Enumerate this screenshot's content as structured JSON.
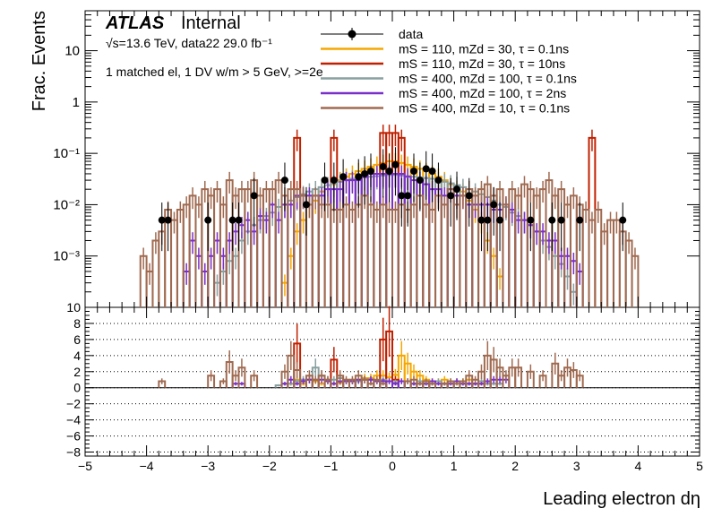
{
  "header": {
    "atlas": "ATLAS",
    "internal": "Internal",
    "energy": "√s=13.6 TeV, data22 29.0 fb⁻¹",
    "selection": "1 matched el, 1 DV w/m > 5 GeV, >=2e"
  },
  "colors": {
    "data": "#000000",
    "s110_30_01": "#f5a700",
    "s110_30_10": "#c02000",
    "s400_100_01": "#8aa0a0",
    "s400_100_2": "#7a2fc9",
    "s400_10_01": "#a06a50"
  },
  "chart_data": [
    {
      "type": "histogram",
      "panel": "main",
      "xlabel": "Leading electron dη",
      "ylabel": "Frac. Events",
      "xlim": [
        -5,
        5
      ],
      "ylim": [
        0.0001,
        60
      ],
      "yscale": "log",
      "yticks": [
        "10⁻³",
        "10⁻²",
        "10⁻¹",
        "1",
        "10"
      ],
      "ytick_values": [
        0.001,
        0.01,
        0.1,
        1,
        10
      ],
      "legend_position": "top-right",
      "series": [
        {
          "name": "data",
          "kind": "points",
          "x": [
            -3.75,
            -3.65,
            -3.0,
            -2.6,
            -2.5,
            -2.25,
            -1.75,
            -1.4,
            -1.1,
            -0.95,
            -0.8,
            -0.55,
            -0.45,
            -0.35,
            -0.15,
            -0.05,
            0.05,
            0.15,
            0.25,
            0.35,
            0.45,
            0.55,
            0.65,
            0.75,
            0.95,
            1.05,
            1.25,
            1.45,
            1.55,
            1.65,
            1.75,
            2.25,
            2.6,
            2.75,
            3.05,
            3.75
          ],
          "y": [
            0.005,
            0.005,
            0.005,
            0.005,
            0.005,
            0.015,
            0.03,
            0.01,
            0.03,
            0.03,
            0.035,
            0.035,
            0.04,
            0.045,
            0.055,
            0.045,
            0.06,
            0.015,
            0.015,
            0.045,
            0.03,
            0.05,
            0.045,
            0.03,
            0.015,
            0.02,
            0.015,
            0.005,
            0.005,
            0.01,
            0.005,
            0.005,
            0.005,
            0.005,
            0.005,
            0.005
          ]
        },
        {
          "name": "mS = 110, mZd = 30, τ = 0.1ns",
          "color_key": "s110_30_01",
          "kind": "step",
          "x": [
            -1.75,
            -1.65,
            -1.55,
            -1.45,
            -1.35,
            -1.25,
            -1.15,
            -1.05,
            -0.95,
            -0.85,
            -0.75,
            -0.65,
            -0.55,
            -0.45,
            -0.35,
            -0.25,
            -0.15,
            -0.05,
            0.05,
            0.15,
            0.25,
            0.35,
            0.45,
            0.55,
            0.65,
            0.75,
            0.85,
            0.95,
            1.05,
            1.15,
            1.25,
            1.35,
            1.45,
            1.55,
            1.65,
            1.75
          ],
          "y": [
            0.0003,
            0.001,
            0.003,
            0.005,
            0.01,
            0.012,
            0.018,
            0.02,
            0.025,
            0.03,
            0.035,
            0.04,
            0.045,
            0.05,
            0.055,
            0.06,
            0.065,
            0.07,
            0.07,
            0.065,
            0.06,
            0.055,
            0.05,
            0.045,
            0.04,
            0.035,
            0.03,
            0.025,
            0.02,
            0.018,
            0.012,
            0.008,
            0.005,
            0.002,
            0.001,
            0.0004
          ]
        },
        {
          "name": "mS = 110, mZd = 30, τ = 10ns",
          "color_key": "s110_30_10",
          "kind": "step",
          "x": [
            -1.55,
            -0.95,
            -0.15,
            -0.05,
            0.05,
            0.15,
            3.25
          ],
          "y": [
            0.2,
            0.2,
            0.25,
            0.25,
            0.25,
            0.2,
            0.2
          ]
        },
        {
          "name": "mS = 400, mZd = 100, τ = 0.1ns",
          "color_key": "s400_100_01",
          "kind": "step",
          "x": [
            -2.85,
            -2.75,
            -2.65,
            -2.55,
            -2.45,
            -2.35,
            -2.25,
            -2.15,
            -2.05,
            -1.95,
            -1.85,
            -1.75,
            -1.65,
            -1.55,
            -1.45,
            -1.35,
            -1.25,
            -1.15,
            -1.05,
            -0.95,
            -0.85,
            -0.75,
            -0.65,
            -0.55,
            -0.45,
            -0.35,
            -0.25,
            -0.15,
            -0.05,
            0.05,
            0.15,
            0.25,
            0.35,
            0.45,
            0.55,
            0.65,
            0.75,
            0.85,
            0.95,
            1.05,
            1.15,
            1.25,
            1.35,
            1.45,
            1.55,
            1.65,
            1.75,
            1.85,
            1.95,
            2.05,
            2.15,
            2.25,
            2.35,
            2.45,
            2.55,
            2.65,
            2.75,
            2.85,
            2.95
          ],
          "y": [
            0.0003,
            0.0005,
            0.0008,
            0.001,
            0.002,
            0.003,
            0.004,
            0.005,
            0.006,
            0.007,
            0.009,
            0.01,
            0.012,
            0.014,
            0.016,
            0.018,
            0.02,
            0.022,
            0.024,
            0.026,
            0.028,
            0.03,
            0.032,
            0.033,
            0.034,
            0.035,
            0.036,
            0.037,
            0.038,
            0.038,
            0.037,
            0.036,
            0.035,
            0.034,
            0.033,
            0.032,
            0.03,
            0.028,
            0.026,
            0.024,
            0.022,
            0.02,
            0.018,
            0.016,
            0.014,
            0.012,
            0.01,
            0.009,
            0.007,
            0.006,
            0.005,
            0.004,
            0.003,
            0.002,
            0.0015,
            0.001,
            0.0007,
            0.0004,
            0.0002
          ]
        },
        {
          "name": "mS = 400, mZd = 100, τ = 2ns",
          "color_key": "s400_100_2",
          "kind": "step",
          "x": [
            -3.35,
            -3.25,
            -3.15,
            -3.05,
            -2.95,
            -2.85,
            -2.75,
            -2.65,
            -2.55,
            -2.45,
            -2.35,
            -2.25,
            -2.15,
            -2.05,
            -1.95,
            -1.85,
            -1.75,
            -1.65,
            -1.55,
            -1.45,
            -1.35,
            -1.25,
            -1.15,
            -1.05,
            -0.95,
            -0.85,
            -0.75,
            -0.65,
            -0.55,
            -0.45,
            -0.35,
            -0.25,
            -0.15,
            -0.05,
            0.05,
            0.15,
            0.25,
            0.35,
            0.45,
            0.55,
            0.65,
            0.75,
            0.85,
            0.95,
            1.05,
            1.15,
            1.25,
            1.35,
            1.45,
            1.55,
            1.65,
            1.75,
            1.85,
            1.95,
            2.05,
            2.15,
            2.25,
            2.35,
            2.45,
            2.55,
            2.65,
            2.75,
            2.85,
            2.95,
            3.05
          ],
          "y": [
            0.0005,
            0.002,
            0.001,
            0.0005,
            0.001,
            0.002,
            0.001,
            0.002,
            0.003,
            0.004,
            0.005,
            0.003,
            0.006,
            0.005,
            0.01,
            0.005,
            0.01,
            0.01,
            0.015,
            0.015,
            0.015,
            0.015,
            0.015,
            0.02,
            0.02,
            0.02,
            0.03,
            0.03,
            0.03,
            0.035,
            0.04,
            0.04,
            0.04,
            0.04,
            0.04,
            0.04,
            0.035,
            0.03,
            0.03,
            0.025,
            0.02,
            0.02,
            0.015,
            0.02,
            0.015,
            0.015,
            0.01,
            0.01,
            0.01,
            0.01,
            0.008,
            0.008,
            0.01,
            0.008,
            0.005,
            0.005,
            0.004,
            0.003,
            0.003,
            0.002,
            0.002,
            0.001,
            0.001,
            0.0008,
            0.0005
          ]
        },
        {
          "name": "mS = 400, mZd = 10, τ = 0.1ns",
          "color_key": "s400_10_01",
          "kind": "step",
          "x": [
            -4.05,
            -3.95,
            -3.85,
            -3.75,
            -3.65,
            -3.55,
            -3.45,
            -3.35,
            -3.25,
            -3.15,
            -3.05,
            -2.95,
            -2.85,
            -2.75,
            -2.65,
            -2.55,
            -2.45,
            -2.35,
            -2.25,
            -2.15,
            -2.05,
            -1.95,
            -1.85,
            -1.75,
            -1.65,
            -1.55,
            -1.45,
            -1.35,
            -1.25,
            -1.15,
            -1.05,
            -0.95,
            -0.85,
            -0.75,
            -0.65,
            -0.55,
            -0.45,
            -0.35,
            -0.25,
            -0.15,
            -0.05,
            0.05,
            0.15,
            0.25,
            0.35,
            0.45,
            0.55,
            0.65,
            0.75,
            0.85,
            0.95,
            1.05,
            1.15,
            1.25,
            1.35,
            1.45,
            1.55,
            1.65,
            1.75,
            1.85,
            1.95,
            2.05,
            2.15,
            2.25,
            2.35,
            2.45,
            2.55,
            2.65,
            2.75,
            2.85,
            2.95,
            3.05,
            3.15,
            3.25,
            3.35,
            3.45,
            3.55,
            3.65,
            3.75,
            3.85,
            3.95
          ],
          "y": [
            0.001,
            0.0005,
            0.002,
            0.003,
            0.008,
            0.005,
            0.008,
            0.01,
            0.015,
            0.01,
            0.02,
            0.015,
            0.02,
            0.01,
            0.03,
            0.015,
            0.02,
            0.02,
            0.03,
            0.015,
            0.02,
            0.02,
            0.03,
            0.015,
            0.02,
            0.02,
            0.015,
            0.01,
            0.015,
            0.01,
            0.01,
            0.008,
            0.008,
            0.01,
            0.008,
            0.01,
            0.015,
            0.01,
            0.008,
            0.01,
            0.008,
            0.008,
            0.01,
            0.008,
            0.01,
            0.015,
            0.01,
            0.008,
            0.015,
            0.01,
            0.02,
            0.01,
            0.015,
            0.02,
            0.015,
            0.02,
            0.025,
            0.015,
            0.02,
            0.01,
            0.02,
            0.015,
            0.025,
            0.02,
            0.015,
            0.02,
            0.03,
            0.015,
            0.02,
            0.01,
            0.015,
            0.01,
            0.008,
            0.005,
            0.008,
            0.003,
            0.005,
            0.005,
            0.003,
            0.002,
            0.001
          ]
        }
      ]
    },
    {
      "type": "histogram",
      "panel": "ratio",
      "xlabel": "Leading electron dη",
      "xlim": [
        -5,
        5
      ],
      "ylim": [
        -8.5,
        10
      ],
      "xticks": [
        "−5",
        "−4",
        "−3",
        "−2",
        "−1",
        "0",
        "1",
        "2",
        "3",
        "4",
        "5"
      ],
      "xtick_values": [
        -5,
        -4,
        -3,
        -2,
        -1,
        0,
        1,
        2,
        3,
        4,
        5
      ],
      "yticks": [
        "−8",
        "−6",
        "−4",
        "−2",
        "0",
        "2",
        "4",
        "6",
        "8",
        "10"
      ],
      "ytick_values": [
        -8,
        -6,
        -4,
        -2,
        0,
        2,
        4,
        6,
        8,
        10
      ],
      "grid": "horizontal-dotted",
      "series": [
        {
          "name": "mS = 110, mZd = 30, τ = 0.1ns",
          "color_key": "s110_30_01",
          "x": [
            -1.65,
            -1.55,
            -1.45,
            -1.35,
            -1.25,
            -1.15,
            -1.05,
            -0.95,
            -0.85,
            -0.75,
            -0.65,
            -0.55,
            -0.45,
            -0.35,
            -0.25,
            -0.15,
            -0.05,
            0.05,
            0.15,
            0.25,
            0.35,
            0.45,
            0.55,
            0.65,
            0.75,
            0.85,
            0.95,
            1.05,
            1.15,
            1.25,
            1.35,
            1.45,
            1.55
          ],
          "y": [
            0.5,
            1,
            0.5,
            1,
            0.8,
            0.5,
            0.8,
            0.5,
            0.6,
            0.8,
            0.8,
            1,
            1.2,
            1.2,
            1.5,
            1.5,
            1.3,
            1.6,
            4,
            3,
            2,
            1.5,
            1,
            0.8,
            0.8,
            1,
            0.8,
            0.8,
            0.8,
            1,
            0.5,
            0.5,
            0.5
          ]
        },
        {
          "name": "mS = 110, mZd = 30, τ = 10ns",
          "color_key": "s110_30_10",
          "x": [
            -1.55,
            -0.95,
            -0.15,
            -0.05,
            0.05
          ],
          "y": [
            5.5,
            3.5,
            6,
            7,
            1
          ]
        },
        {
          "name": "mS = 400, mZd = 100, τ = 0.1ns",
          "color_key": "s400_100_01",
          "x": [
            -1.85,
            -1.75,
            -1.65,
            -1.55,
            -1.45,
            -1.35,
            -1.25,
            -1.15,
            -1.05,
            -0.95,
            -0.85,
            -0.75,
            -0.65,
            -0.55,
            -0.45,
            -0.35,
            -0.25,
            -0.15,
            -0.05,
            0.05,
            0.15,
            0.25,
            0.35,
            0.45,
            0.55,
            0.65,
            0.75,
            0.85,
            0.95,
            1.05,
            1.15,
            1.25,
            1.35,
            1.45,
            1.55,
            1.65,
            1.75
          ],
          "y": [
            0.3,
            0.5,
            0.5,
            0.8,
            1,
            1,
            2.5,
            1.5,
            1,
            1,
            1.2,
            0.8,
            0.8,
            0.8,
            1,
            1,
            0.8,
            1,
            0.8,
            0.7,
            0.8,
            0.8,
            0.5,
            0.8,
            0.5,
            0.5,
            0.8,
            0.5,
            0.8,
            0.8,
            0.5,
            0.5,
            0.5,
            0.8,
            0.5,
            0.5,
            0.5
          ]
        },
        {
          "name": "mS = 400, mZd = 100, τ = 2ns",
          "color_key": "s400_100_2",
          "x": [
            -2.55,
            -2.45,
            -1.75,
            -1.65,
            -1.55,
            -1.45,
            -1.35,
            -1.25,
            -1.15,
            -1.05,
            -0.95,
            -0.85,
            -0.75,
            -0.65,
            -0.55,
            -0.45,
            -0.35,
            -0.25,
            -0.15,
            -0.05,
            0.05,
            0.15,
            0.25,
            0.35,
            0.45,
            0.55,
            0.65,
            0.75,
            0.85,
            0.95,
            1.05,
            1.15,
            1.25,
            1.35,
            1.45,
            1.55,
            1.65,
            1.75,
            1.85
          ],
          "y": [
            0.5,
            0.5,
            0.5,
            1,
            0.5,
            0.8,
            1,
            1,
            1,
            0.8,
            0.5,
            0.8,
            0.8,
            0.8,
            1,
            1,
            1,
            0.8,
            0.8,
            0.8,
            0.5,
            0.8,
            0.8,
            0.5,
            0.5,
            0.5,
            0.8,
            0.5,
            0.5,
            0.5,
            0.8,
            0.5,
            0.5,
            0.5,
            0.5,
            0.8,
            1,
            1,
            1
          ]
        },
        {
          "name": "mS = 400, mZd = 10, τ = 0.1ns",
          "color_key": "s400_10_01",
          "x": [
            -3.75,
            -2.95,
            -2.75,
            -2.65,
            -2.55,
            -2.45,
            -2.25,
            -1.75,
            -1.65,
            -1.55,
            -1.35,
            -1.25,
            -1.15,
            -1.05,
            -0.85,
            -0.75,
            -0.65,
            -0.55,
            -0.45,
            -0.35,
            -0.25,
            -0.15,
            0.25,
            0.35,
            0.45,
            0.55,
            0.65,
            0.85,
            0.95,
            1.05,
            1.15,
            1.25,
            1.35,
            1.45,
            1.55,
            1.65,
            1.75,
            1.85,
            1.95,
            2.05,
            2.25,
            2.45,
            2.65,
            2.75,
            2.85,
            2.95,
            3.05
          ],
          "y": [
            0.8,
            1.5,
            0.8,
            3.2,
            1.5,
            2.5,
            1.5,
            2,
            4,
            2.2,
            1.5,
            1,
            1.5,
            1,
            1.5,
            1,
            1,
            1.5,
            1,
            0.5,
            1,
            0.5,
            0.8,
            1,
            0.5,
            0.8,
            0.5,
            0.5,
            0.8,
            0.5,
            0.8,
            1.5,
            1,
            2,
            4,
            3.5,
            2.5,
            1.5,
            2.5,
            2.5,
            2,
            1.5,
            3,
            1.5,
            2.5,
            2.2,
            1.5
          ]
        }
      ]
    }
  ]
}
